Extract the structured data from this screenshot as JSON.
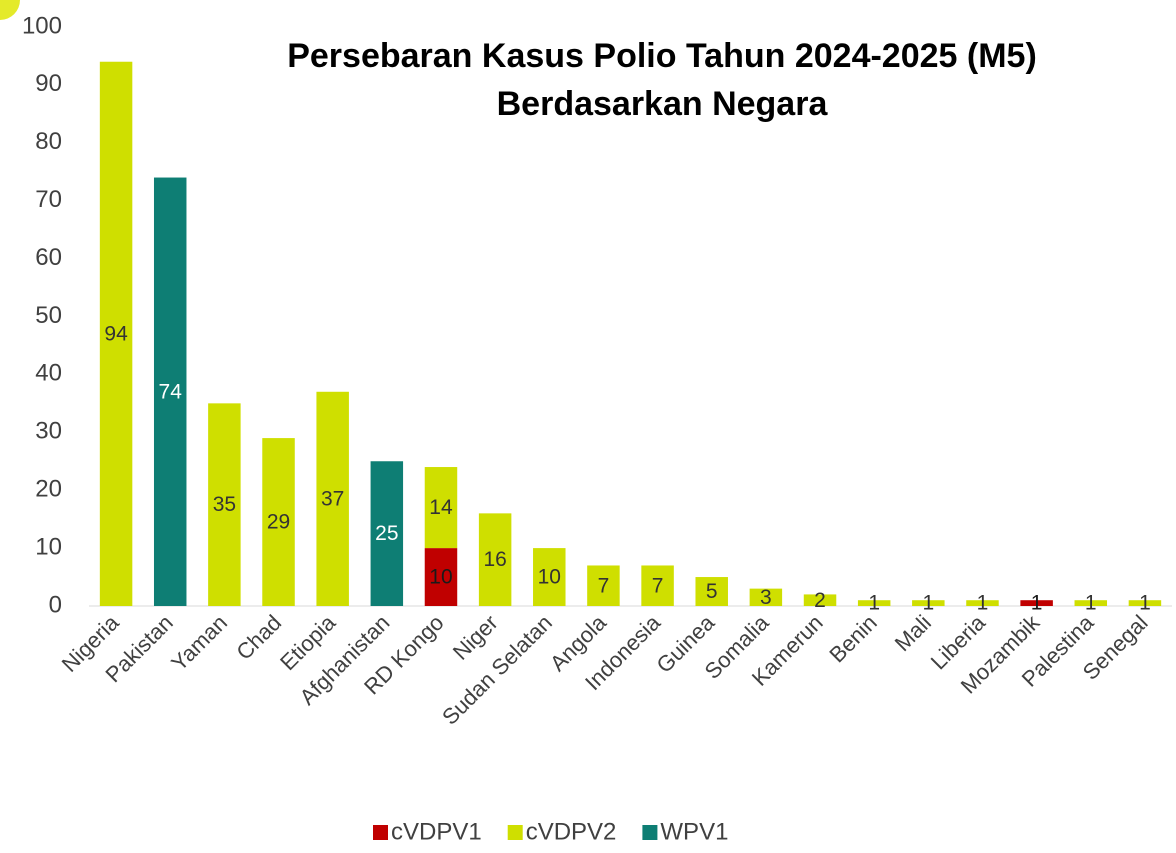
{
  "chart_data": {
    "type": "bar",
    "stacked": true,
    "title_lines": [
      "Persebaran Kasus Polio Tahun 2024-2025 (M5)",
      "Berdasarkan Negara"
    ],
    "categories": [
      "Nigeria",
      "Pakistan",
      "Yaman",
      "Chad",
      "Etiopia",
      "Afghanistan",
      "RD Kongo",
      "Niger",
      "Sudan Selatan",
      "Angola",
      "Indonesia",
      "Guinea",
      "Somalia",
      "Kamerun",
      "Benin",
      "Mali",
      "Liberia",
      "Mozambik",
      "Palestina",
      "Senegal"
    ],
    "series": [
      {
        "name": "cVDPV1",
        "color": "#c00000",
        "values": [
          null,
          null,
          null,
          null,
          null,
          null,
          10,
          null,
          null,
          null,
          null,
          null,
          null,
          null,
          null,
          null,
          null,
          1,
          null,
          null
        ]
      },
      {
        "name": "cVDPV2",
        "color": "#cfdf00",
        "values": [
          94,
          null,
          35,
          29,
          37,
          null,
          14,
          16,
          10,
          7,
          7,
          5,
          3,
          2,
          1,
          1,
          1,
          null,
          1,
          1
        ]
      },
      {
        "name": "WPV1",
        "color": "#0e7e74",
        "values": [
          null,
          74,
          null,
          null,
          null,
          25,
          null,
          null,
          null,
          null,
          null,
          null,
          null,
          null,
          null,
          null,
          null,
          null,
          null,
          null
        ]
      }
    ],
    "ylim": [
      0,
      100
    ],
    "yticks": [
      0,
      10,
      20,
      30,
      40,
      50,
      60,
      70,
      80,
      90,
      100
    ],
    "grid": false,
    "legend": "bottom"
  }
}
